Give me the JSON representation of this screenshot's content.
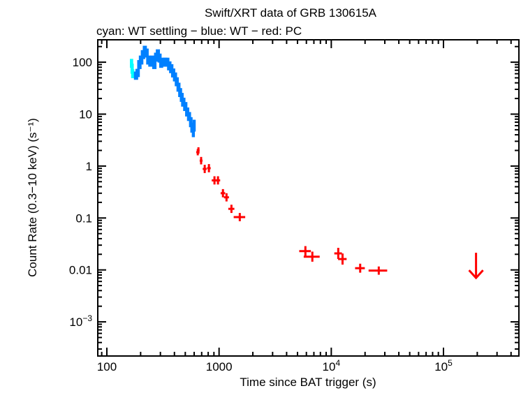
{
  "chart_data": {
    "type": "scatter",
    "title": "Swift/XRT data of GRB 130615A",
    "subtitle": "cyan: WT settling − blue: WT − red: PC",
    "xlabel": "Time since BAT trigger (s)",
    "ylabel": "Count Rate (0.3−10 keV) (s⁻¹)",
    "xscale": "log",
    "yscale": "log",
    "xlim": [
      83,
      470000
    ],
    "ylim": [
      0.00022,
      270
    ],
    "grid": false,
    "x_ticks": [
      {
        "value": 100,
        "label": "100"
      },
      {
        "value": 1000,
        "label": "1000"
      },
      {
        "value": 10000,
        "label": "10",
        "exp": "4"
      },
      {
        "value": 100000,
        "label": "10",
        "exp": "5"
      }
    ],
    "y_ticks": [
      {
        "value": 100,
        "label": "100"
      },
      {
        "value": 10,
        "label": "10"
      },
      {
        "value": 1,
        "label": "1"
      },
      {
        "value": 0.1,
        "label": "0.1"
      },
      {
        "value": 0.01,
        "label": "0.01"
      },
      {
        "value": 0.001,
        "label": "10",
        "exp": "−3"
      }
    ],
    "colors": {
      "wt_settling": "#00ffff",
      "wt": "#0080ff",
      "pc": "#ff0000"
    },
    "series": [
      {
        "mode": "WT settling",
        "color": "#00ffff",
        "points": [
          [
            166,
            95,
            0.22
          ],
          [
            168,
            75,
            0.25
          ],
          [
            170,
            60,
            0.22
          ]
        ]
      },
      {
        "mode": "WT",
        "color": "#0080ff",
        "points": [
          [
            182,
            55,
            0.2
          ],
          [
            188,
            62,
            0.2
          ],
          [
            195,
            90,
            0.22
          ],
          [
            202,
            110,
            0.22
          ],
          [
            210,
            140,
            0.22
          ],
          [
            218,
            170,
            0.22
          ],
          [
            225,
            150,
            0.22
          ],
          [
            235,
            110,
            0.22
          ],
          [
            245,
            100,
            0.22
          ],
          [
            255,
            110,
            0.22
          ],
          [
            265,
            90,
            0.22
          ],
          [
            275,
            125,
            0.22
          ],
          [
            285,
            145,
            0.22
          ],
          [
            295,
            120,
            0.22
          ],
          [
            305,
            95,
            0.22
          ],
          [
            315,
            100,
            0.22
          ],
          [
            330,
            100,
            0.22
          ],
          [
            345,
            100,
            0.22
          ],
          [
            360,
            85,
            0.22
          ],
          [
            375,
            75,
            0.22
          ],
          [
            390,
            62,
            0.22
          ],
          [
            405,
            52,
            0.22
          ],
          [
            420,
            42,
            0.22
          ],
          [
            435,
            33,
            0.22
          ],
          [
            450,
            26,
            0.22
          ],
          [
            465,
            21,
            0.22
          ],
          [
            480,
            17,
            0.22
          ],
          [
            500,
            14,
            0.22
          ],
          [
            520,
            11,
            0.22
          ],
          [
            540,
            9,
            0.22
          ],
          [
            560,
            7,
            0.25
          ],
          [
            575,
            5.5,
            0.25
          ],
          [
            590,
            4.5,
            0.25
          ],
          [
            600,
            6,
            0.3
          ]
        ]
      },
      {
        "mode": "PC",
        "color": "#ff0000",
        "points": [
          [
            646,
            1.85,
            20,
            0.15
          ],
          [
            655,
            2.0,
            15,
            0.15
          ],
          [
            692,
            1.27,
            20,
            0.18
          ],
          [
            745,
            0.88,
            30,
            0.2
          ],
          [
            812,
            0.91,
            30,
            0.2
          ],
          [
            910,
            0.53,
            50,
            0.2
          ],
          [
            978,
            0.53,
            45,
            0.2
          ],
          [
            1083,
            0.3,
            50,
            0.2
          ],
          [
            1165,
            0.25,
            60,
            0.2
          ],
          [
            1289,
            0.15,
            80,
            0.2
          ],
          [
            1530,
            0.104,
            180,
            0.2
          ],
          [
            5880,
            0.023,
            700,
            0.25
          ],
          [
            6780,
            0.018,
            1100,
            0.25
          ],
          [
            11540,
            0.0208,
            900,
            0.28
          ],
          [
            12600,
            0.0162,
            1100,
            0.28
          ],
          [
            18100,
            0.0108,
            1800,
            0.22
          ],
          [
            26500,
            0.0097,
            5000,
            0.2
          ]
        ]
      }
    ],
    "upper_limits": [
      {
        "mode": "PC",
        "x": 195000,
        "y": 0.009,
        "color": "#ff0000"
      }
    ]
  }
}
